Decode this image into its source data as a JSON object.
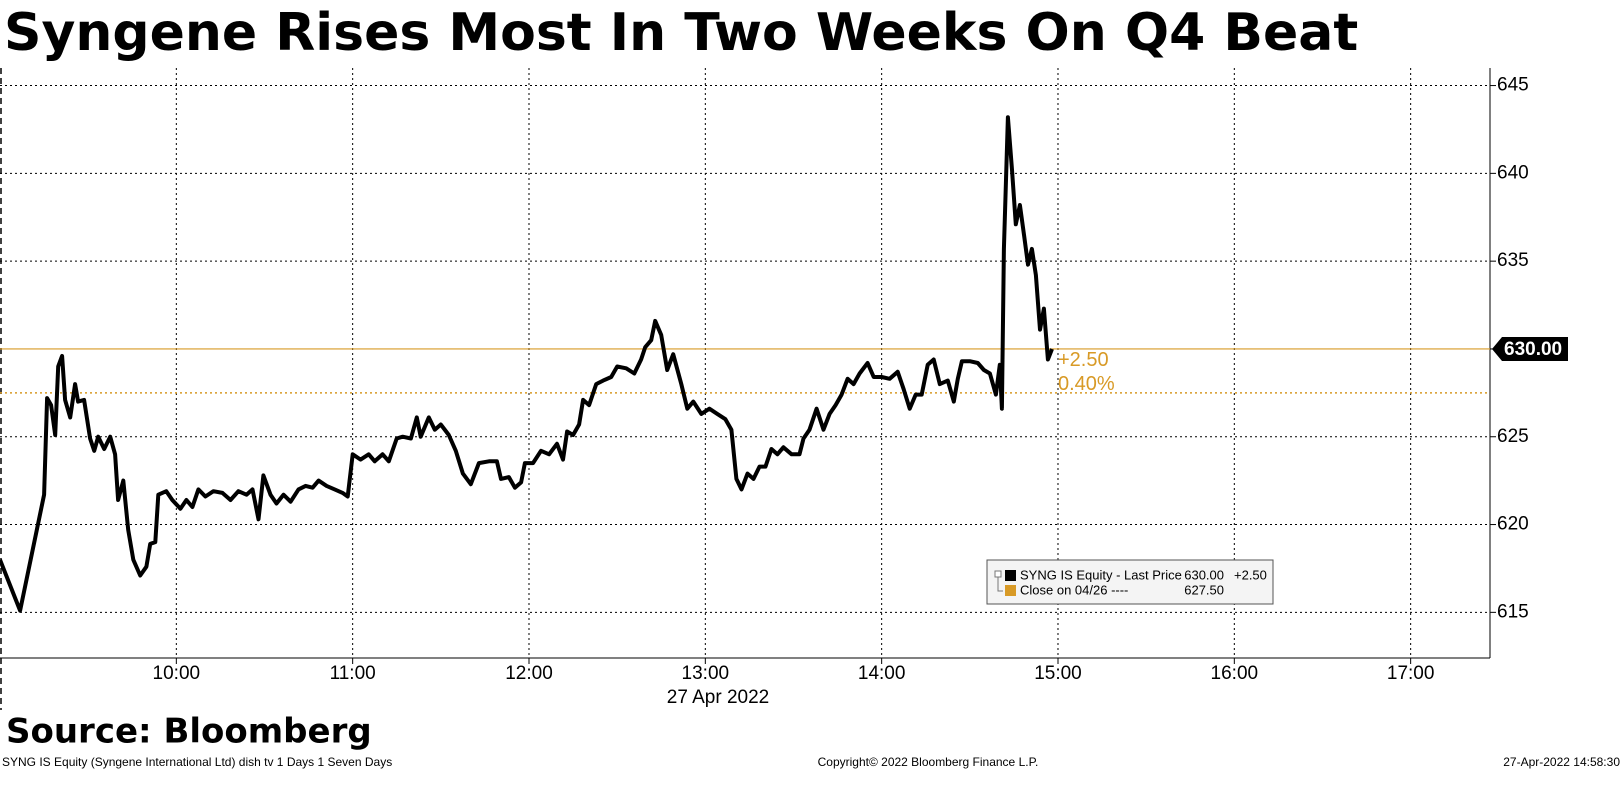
{
  "chart_data": {
    "type": "line",
    "title": "Syngene Rises Most In Two Weeks On Q4 Beat",
    "x_axis_label": "27 Apr 2022",
    "source": "Source: Bloomberg",
    "footer": {
      "left": "SYNG IS Equity (Syngene International Ltd) dish tv 1 Days 1 Seven Days",
      "center": "Copyright© 2022 Bloomberg Finance L.P.",
      "right": "27-Apr-2022 14:58:30"
    },
    "xlim": [
      9,
      17.45
    ],
    "xticks": [
      {
        "value": 10,
        "label": "10:00"
      },
      {
        "value": 11,
        "label": "11:00"
      },
      {
        "value": 12,
        "label": "12:00"
      },
      {
        "value": 13,
        "label": "13:00"
      },
      {
        "value": 14,
        "label": "14:00"
      },
      {
        "value": 15,
        "label": "15:00"
      },
      {
        "value": 16,
        "label": "16:00"
      },
      {
        "value": 17,
        "label": "17:00"
      }
    ],
    "ylim": [
      612.4,
      646
    ],
    "yticks": [
      615,
      620,
      625,
      630,
      635,
      640,
      645
    ],
    "grid": true,
    "legend_position": "lower right",
    "x": [
      9.0,
      9.114,
      9.25,
      9.267,
      9.29,
      9.313,
      9.33,
      9.352,
      9.369,
      9.398,
      9.426,
      9.443,
      9.477,
      9.511,
      9.534,
      9.557,
      9.591,
      9.625,
      9.653,
      9.67,
      9.699,
      9.727,
      9.756,
      9.795,
      9.83,
      9.852,
      9.881,
      9.898,
      9.943,
      9.977,
      10.023,
      10.057,
      10.091,
      10.125,
      10.165,
      10.21,
      10.261,
      10.307,
      10.352,
      10.398,
      10.432,
      10.466,
      10.494,
      10.534,
      10.568,
      10.608,
      10.648,
      10.693,
      10.733,
      10.773,
      10.807,
      10.852,
      10.898,
      10.943,
      10.972,
      11.0,
      11.045,
      11.091,
      11.125,
      11.17,
      11.205,
      11.25,
      11.284,
      11.33,
      11.364,
      11.386,
      11.432,
      11.466,
      11.5,
      11.545,
      11.585,
      11.625,
      11.67,
      11.716,
      11.773,
      11.818,
      11.841,
      11.886,
      11.92,
      11.955,
      11.977,
      12.023,
      12.068,
      12.114,
      12.159,
      12.193,
      12.216,
      12.25,
      12.284,
      12.307,
      12.341,
      12.381,
      12.42,
      12.466,
      12.5,
      12.551,
      12.597,
      12.636,
      12.659,
      12.693,
      12.716,
      12.75,
      12.784,
      12.818,
      12.864,
      12.898,
      12.932,
      12.977,
      13.023,
      13.068,
      13.114,
      13.148,
      13.176,
      13.205,
      13.239,
      13.273,
      13.307,
      13.341,
      13.375,
      13.409,
      13.443,
      13.489,
      13.534,
      13.557,
      13.591,
      13.631,
      13.67,
      13.705,
      13.739,
      13.773,
      13.807,
      13.841,
      13.875,
      13.92,
      13.955,
      14.0,
      14.045,
      14.091,
      14.125,
      14.159,
      14.193,
      14.227,
      14.261,
      14.295,
      14.33,
      14.375,
      14.409,
      14.432,
      14.455,
      14.5,
      14.545,
      14.58,
      14.614,
      14.648,
      14.67,
      14.682,
      14.693,
      14.716,
      14.739,
      14.761,
      14.784,
      14.807,
      14.83,
      14.852,
      14.875,
      14.898,
      14.92,
      14.943,
      14.966
    ],
    "series": [
      {
        "name": "SYNG IS Equity - Last Price",
        "color": "#000000",
        "last_value": {
          "value": 630,
          "label": "630.00"
        },
        "change": {
          "value": 2.5,
          "label": "+2.50"
        },
        "change_pct": {
          "value": 0.4,
          "label": "0.40%"
        },
        "last_line_color": "#d89a26",
        "values": [
          618.0,
          615.1,
          621.7,
          627.2,
          626.8,
          625.1,
          629.0,
          629.6,
          627.1,
          626.1,
          628.0,
          627.0,
          627.1,
          624.9,
          624.2,
          625.0,
          624.3,
          625.0,
          624.0,
          621.4,
          622.5,
          619.7,
          618.0,
          617.1,
          617.6,
          618.9,
          619.0,
          621.7,
          621.9,
          621.4,
          620.9,
          621.4,
          621.0,
          622.0,
          621.6,
          621.9,
          621.8,
          621.4,
          621.9,
          621.7,
          622.0,
          620.3,
          622.8,
          621.7,
          621.2,
          621.7,
          621.3,
          622.0,
          622.2,
          622.1,
          622.5,
          622.2,
          622.0,
          621.8,
          621.6,
          624.0,
          623.7,
          624.0,
          623.6,
          624.0,
          623.6,
          624.9,
          625.0,
          624.9,
          626.1,
          625.0,
          626.1,
          625.4,
          625.7,
          625.1,
          624.2,
          622.9,
          622.3,
          623.5,
          623.6,
          623.6,
          622.6,
          622.7,
          622.1,
          622.4,
          623.5,
          623.5,
          624.2,
          624.0,
          624.6,
          623.7,
          625.3,
          625.1,
          625.7,
          627.1,
          626.8,
          628.0,
          628.2,
          628.4,
          629.0,
          628.9,
          628.6,
          629.4,
          630.1,
          630.5,
          631.6,
          630.8,
          628.8,
          629.7,
          628.0,
          626.6,
          627.0,
          626.3,
          626.6,
          626.3,
          626.0,
          625.4,
          622.6,
          622.0,
          622.9,
          622.6,
          623.3,
          623.3,
          624.3,
          624.0,
          624.4,
          624.0,
          624.0,
          624.9,
          625.4,
          626.6,
          625.4,
          626.3,
          626.8,
          627.4,
          628.3,
          628.0,
          628.6,
          629.2,
          628.4,
          628.4,
          628.3,
          628.7,
          627.7,
          626.6,
          627.4,
          627.4,
          629.1,
          629.4,
          628.0,
          628.2,
          627.0,
          628.3,
          629.3,
          629.3,
          629.2,
          628.8,
          628.6,
          627.4,
          629.1,
          626.6,
          635.7,
          643.2,
          640.2,
          637.1,
          638.2,
          636.5,
          634.8,
          635.7,
          634.2,
          631.1,
          632.3,
          629.4,
          630.0
        ]
      }
    ],
    "reference_lines": [
      {
        "name": "Close on 04/26 ----",
        "value": {
          "value": 627.5,
          "label": "627.50"
        },
        "color": "#d89a26"
      }
    ]
  }
}
